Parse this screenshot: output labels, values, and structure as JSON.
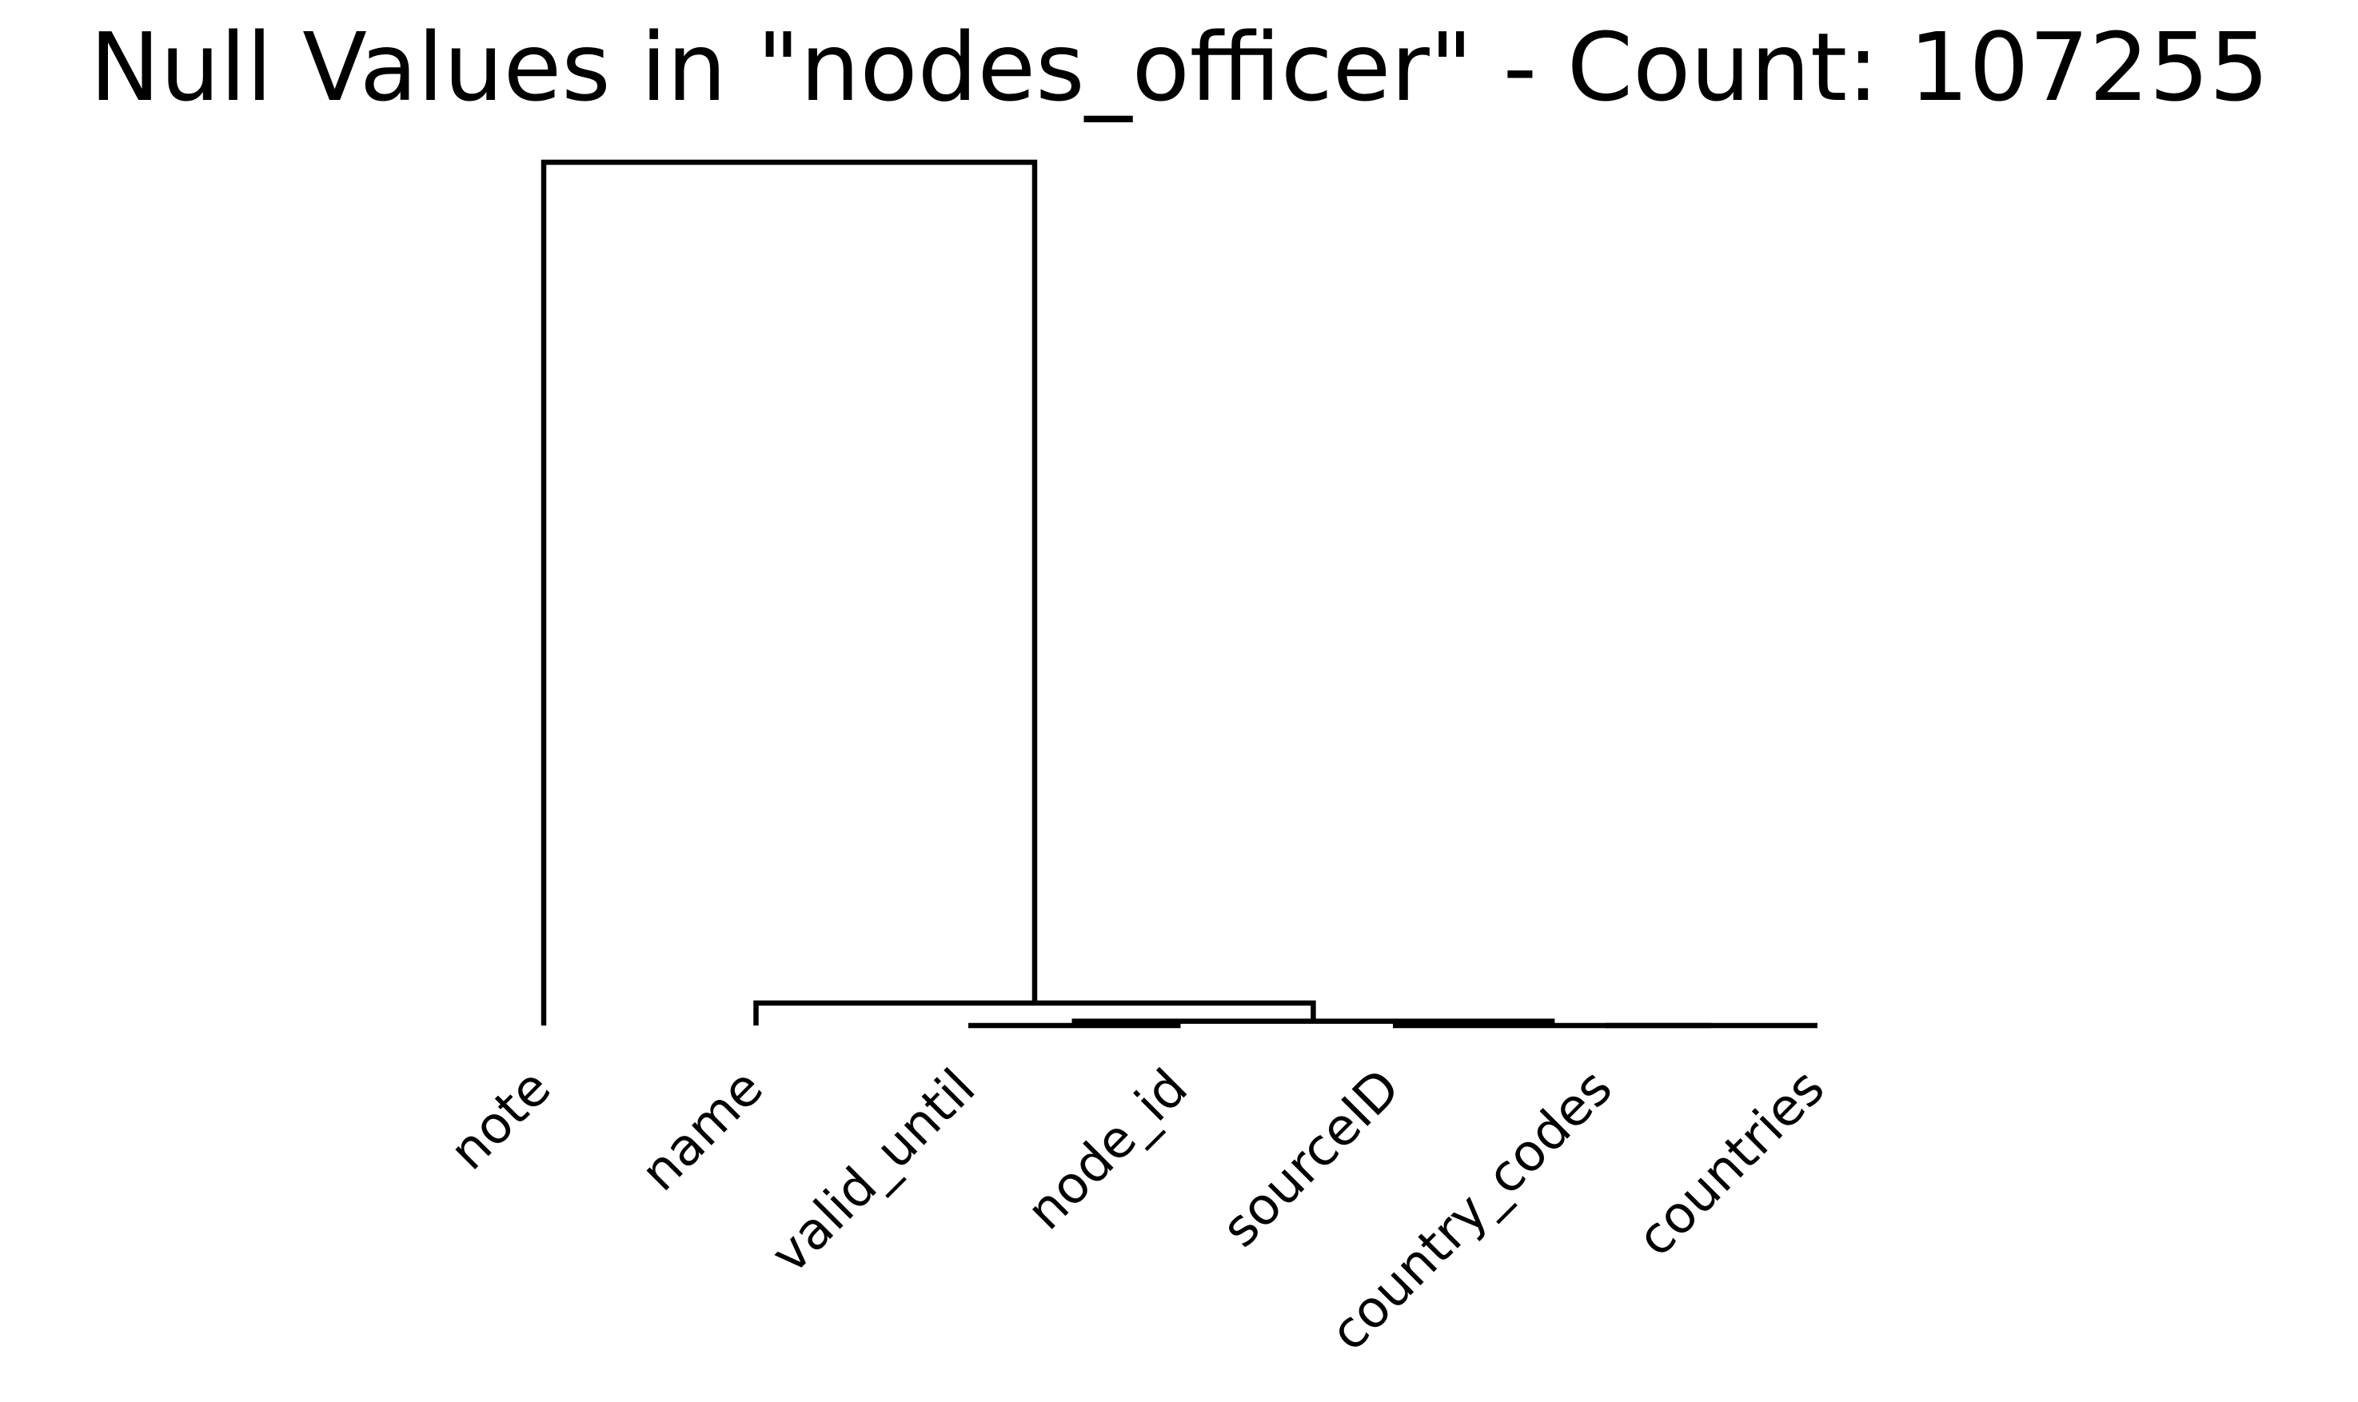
{
  "chart_data": {
    "type": "dendrogram",
    "title": "Null Values in \"nodes_officer\" - Count: 107255",
    "leaves": [
      "note",
      "name",
      "valid_until",
      "node_id",
      "sourceID",
      "country_codes",
      "countries"
    ],
    "merges": [
      {
        "left": 5,
        "right": 6,
        "height": 0.0
      },
      {
        "left": 2,
        "right": 3,
        "height": 0.0
      },
      {
        "left": 7,
        "right": 4,
        "height": 0.0
      },
      {
        "left": 8,
        "right": 9,
        "height": 0.5
      },
      {
        "left": 1,
        "right": 10,
        "height": 2.6
      },
      {
        "left": 0,
        "right": 11,
        "height": 100.0
      }
    ],
    "y_range": [
      0,
      100
    ],
    "grid": false,
    "line_color": "#000000"
  }
}
